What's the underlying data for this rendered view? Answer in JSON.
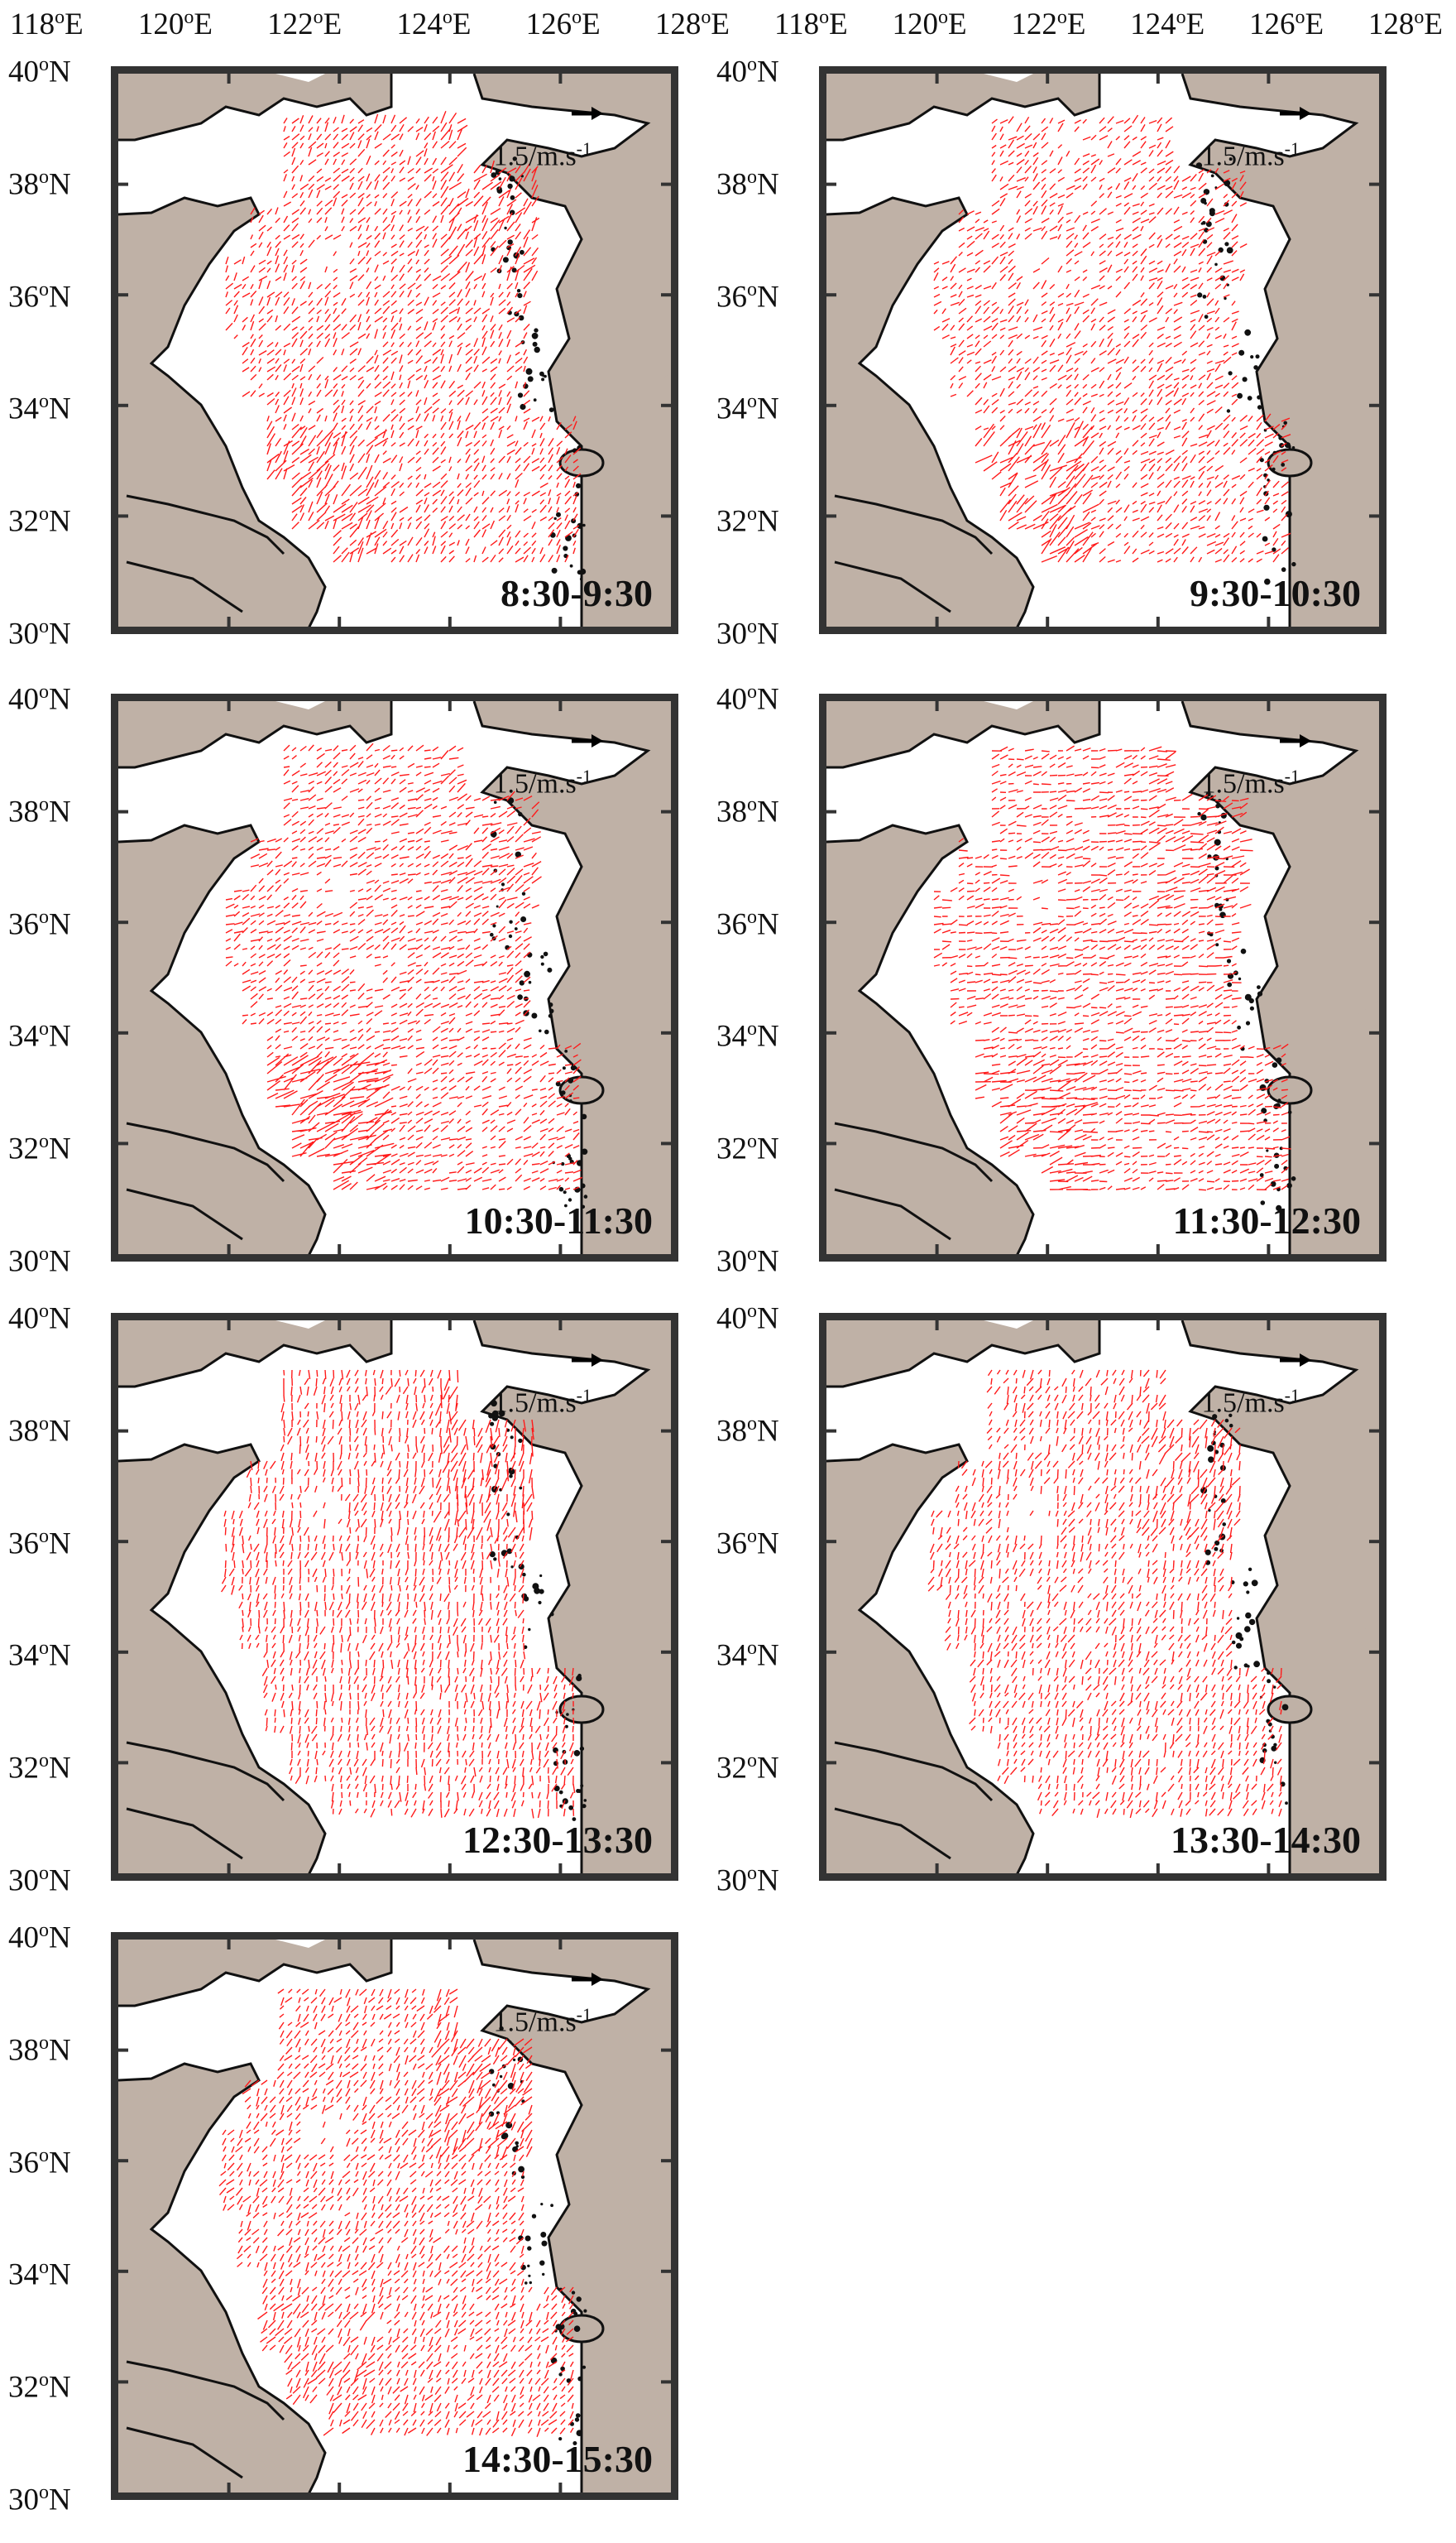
{
  "lon_ticks": [
    "118",
    "120",
    "122",
    "124",
    "126",
    "128"
  ],
  "lon_suffix": "E",
  "lat_ticks": [
    "40",
    "38",
    "36",
    "34",
    "32",
    "30"
  ],
  "lat_suffix": "N",
  "degree": "o",
  "scale": {
    "value": "1.5/m.s",
    "exponent": "-1"
  },
  "panels": [
    {
      "time": "8:30-9:30"
    },
    {
      "time": "9:30-10:30"
    },
    {
      "time": "10:30-11:30"
    },
    {
      "time": "11:30-12:30"
    },
    {
      "time": "12:30-13:30"
    },
    {
      "time": "13:30-14:30"
    },
    {
      "time": "14:30-15:30"
    }
  ],
  "colors": {
    "land": "#bfb1a6",
    "vector": "#ff1a1a",
    "coast": "#111111",
    "frame": "#333333"
  }
}
